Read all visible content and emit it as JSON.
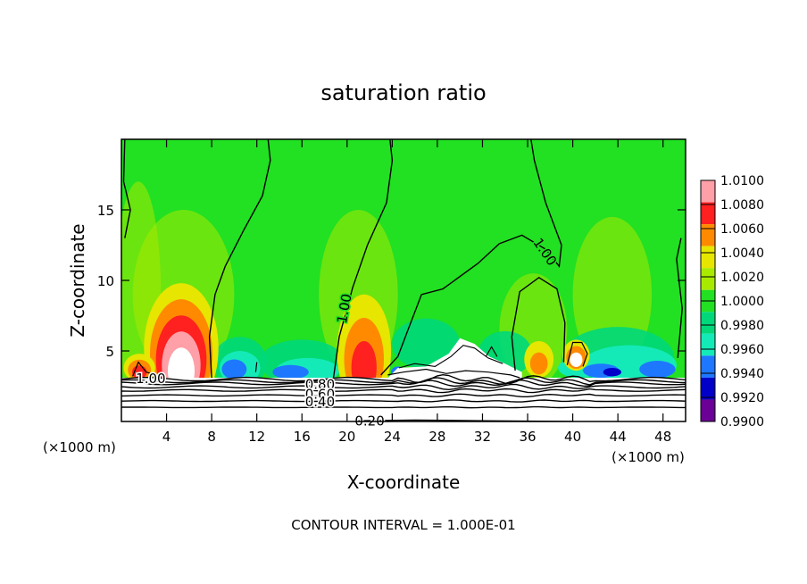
{
  "chart_data": {
    "type": "heatmap",
    "title": "saturation ratio",
    "xlabel": "X-coordinate",
    "ylabel": "Z-coordinate",
    "x_unit": "(×1000 m)",
    "x_unit_right": "(×1000 m)",
    "xlim": [
      0,
      50
    ],
    "ylim": [
      0,
      20
    ],
    "x_ticks": [
      "4",
      "8",
      "12",
      "16",
      "20",
      "24",
      "28",
      "32",
      "36",
      "40",
      "44",
      "48"
    ],
    "y_ticks": [
      "5",
      "10",
      "15"
    ],
    "footnote": "CONTOUR INTERVAL = 1.000E-01",
    "colorbar": {
      "levels": [
        "1.0100",
        "1.0080",
        "1.0060",
        "1.0040",
        "1.0020",
        "1.0000",
        "0.9980",
        "0.9960",
        "0.9940",
        "0.9920",
        "0.9900"
      ],
      "colors": [
        "#ff9fa8",
        "#ff2020",
        "#ff8a00",
        "#e6e600",
        "#a8ea00",
        "#22e022",
        "#00d87a",
        "#14eab8",
        "#1e78ff",
        "#0000c8",
        "#6a0095"
      ]
    },
    "contour_labels": [
      {
        "text": "1.00",
        "x": 2.6,
        "y": 3.0
      },
      {
        "text": "1.00",
        "x": 19.8,
        "y": 8.0,
        "rot": -80
      },
      {
        "text": "1.00",
        "x": 37.5,
        "y": 12.0,
        "rot": 55
      },
      {
        "text": "0.80",
        "x": 17.6,
        "y": 2.6
      },
      {
        "text": "0.60",
        "x": 17.6,
        "y": 1.9
      },
      {
        "text": "0.40",
        "x": 17.6,
        "y": 1.35
      },
      {
        "text": "0.20",
        "x": 22.0,
        "y": 0.0
      }
    ]
  }
}
